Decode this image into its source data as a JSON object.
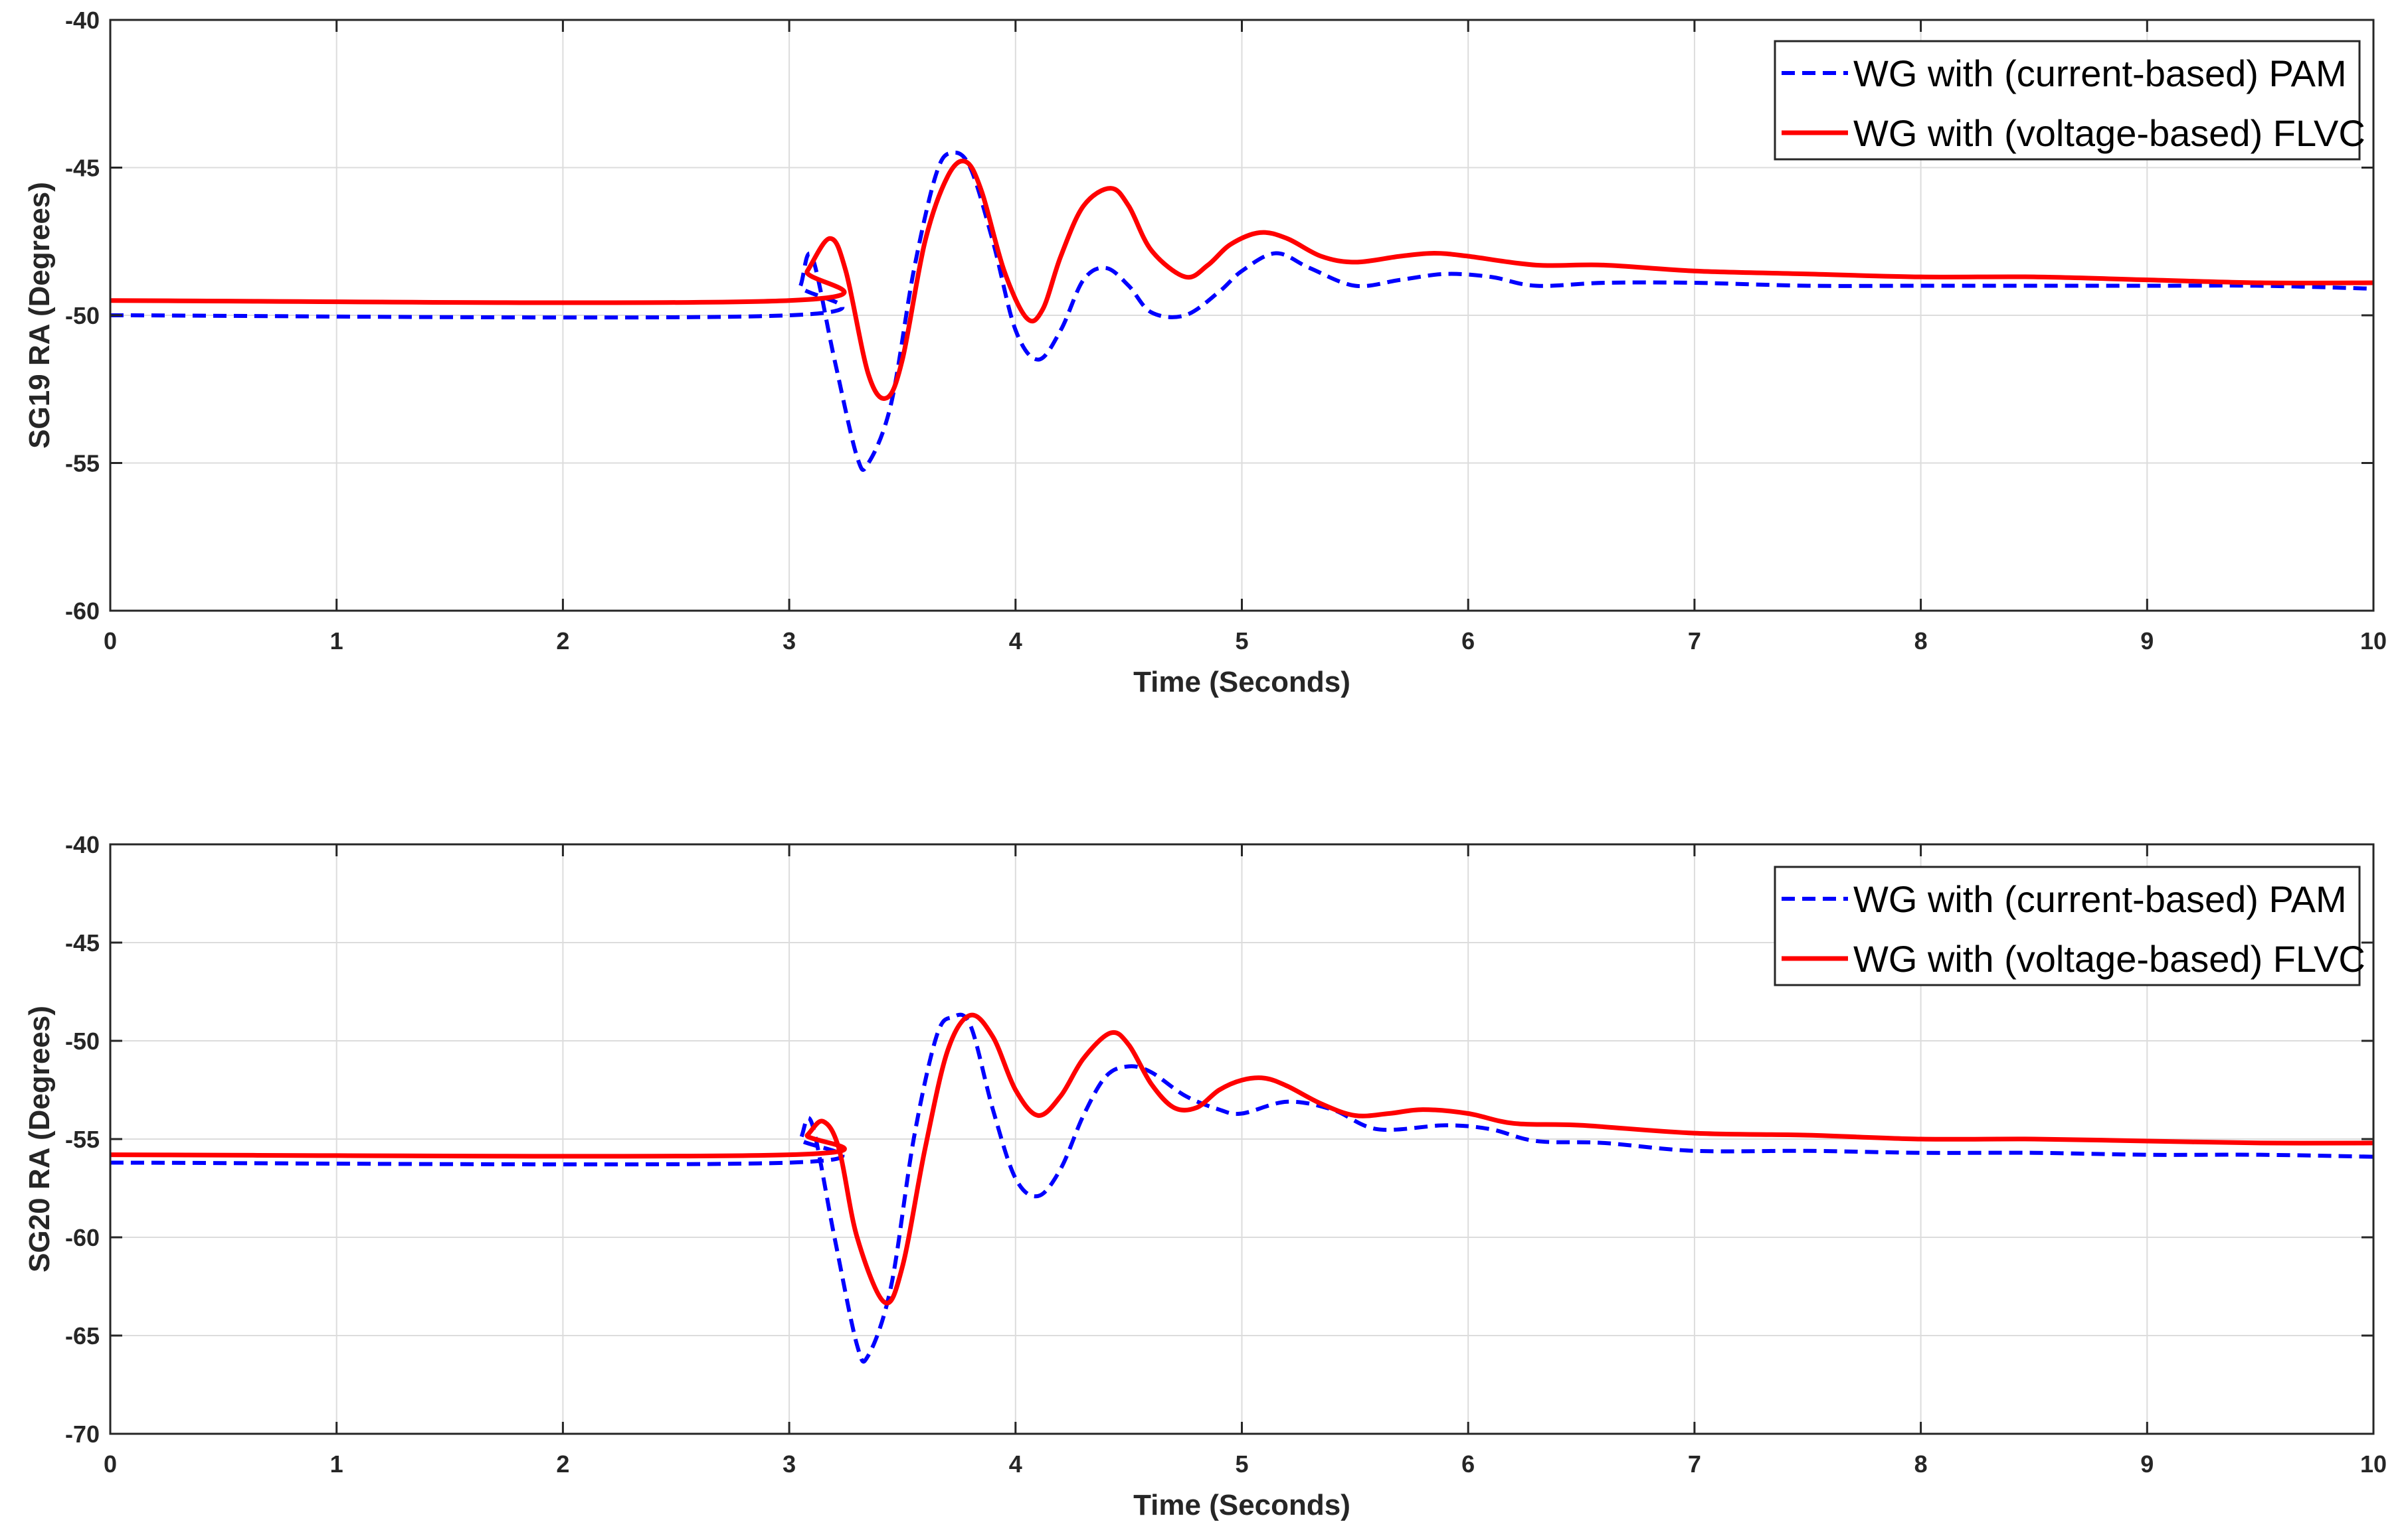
{
  "chart_data": [
    {
      "type": "line",
      "xlabel": "Time (Seconds)",
      "ylabel": "SG19 RA (Degrees)",
      "xlim": [
        0,
        10
      ],
      "ylim": [
        -60,
        -40
      ],
      "xticks": [
        0,
        1,
        2,
        3,
        4,
        5,
        6,
        7,
        8,
        9,
        10
      ],
      "yticks": [
        -60,
        -55,
        -50,
        -45,
        -40
      ],
      "grid": true,
      "legend_position": "top-right",
      "series": [
        {
          "name": "WG with (current-based) PAM",
          "color": "#0000ff",
          "style": "dashed",
          "x": [
            0,
            3.0,
            3.05,
            3.1,
            3.2,
            3.3,
            3.35,
            3.45,
            3.55,
            3.65,
            3.72,
            3.8,
            3.9,
            4.0,
            4.1,
            4.2,
            4.3,
            4.4,
            4.5,
            4.6,
            4.75,
            4.9,
            5.0,
            5.15,
            5.3,
            5.5,
            5.7,
            5.9,
            6.1,
            6.3,
            6.6,
            7.0,
            7.5,
            8.0,
            8.5,
            9.0,
            9.5,
            10.0
          ],
          "y": [
            -50.0,
            -50.0,
            -49.0,
            -48.0,
            -51.5,
            -54.8,
            -55.0,
            -53.0,
            -48.5,
            -45.2,
            -44.5,
            -45.0,
            -47.5,
            -50.5,
            -51.5,
            -50.5,
            -48.8,
            -48.4,
            -49.0,
            -49.9,
            -50.0,
            -49.2,
            -48.5,
            -47.9,
            -48.4,
            -49.0,
            -48.8,
            -48.6,
            -48.7,
            -49.0,
            -48.9,
            -48.9,
            -49.0,
            -49.0,
            -49.0,
            -49.0,
            -49.0,
            -49.1
          ]
        },
        {
          "name": "WG with (voltage-based) FLVC",
          "color": "#ff0000",
          "style": "solid",
          "x": [
            0,
            3.0,
            3.08,
            3.18,
            3.25,
            3.35,
            3.43,
            3.5,
            3.6,
            3.7,
            3.78,
            3.85,
            3.95,
            4.05,
            4.12,
            4.2,
            4.3,
            4.42,
            4.5,
            4.6,
            4.75,
            4.85,
            4.95,
            5.08,
            5.2,
            5.35,
            5.5,
            5.7,
            5.85,
            6.0,
            6.3,
            6.6,
            7.0,
            7.5,
            8.0,
            8.5,
            9.0,
            9.5,
            10.0
          ],
          "y": [
            -49.5,
            -49.5,
            -48.5,
            -47.4,
            -48.5,
            -52.0,
            -52.8,
            -51.5,
            -47.5,
            -45.3,
            -44.8,
            -45.8,
            -48.5,
            -50.1,
            -49.8,
            -48.0,
            -46.3,
            -45.7,
            -46.3,
            -47.8,
            -48.7,
            -48.3,
            -47.6,
            -47.2,
            -47.4,
            -48.0,
            -48.2,
            -48.0,
            -47.9,
            -48.0,
            -48.3,
            -48.3,
            -48.5,
            -48.6,
            -48.7,
            -48.7,
            -48.8,
            -48.9,
            -48.9
          ]
        }
      ]
    },
    {
      "type": "line",
      "xlabel": "Time (Seconds)",
      "ylabel": "SG20 RA (Degrees)",
      "xlim": [
        0,
        10
      ],
      "ylim": [
        -70,
        -40
      ],
      "xticks": [
        0,
        1,
        2,
        3,
        4,
        5,
        6,
        7,
        8,
        9,
        10
      ],
      "yticks": [
        -70,
        -65,
        -60,
        -55,
        -50,
        -45,
        -40
      ],
      "grid": true,
      "legend_position": "top-right",
      "series": [
        {
          "name": "WG with (current-based) PAM",
          "color": "#0000ff",
          "style": "dashed",
          "x": [
            0,
            3.0,
            3.05,
            3.1,
            3.2,
            3.3,
            3.35,
            3.45,
            3.55,
            3.65,
            3.72,
            3.8,
            3.9,
            4.0,
            4.1,
            4.2,
            4.3,
            4.4,
            4.5,
            4.6,
            4.75,
            4.9,
            5.0,
            5.2,
            5.4,
            5.6,
            5.9,
            6.1,
            6.3,
            6.6,
            7.0,
            7.5,
            8.0,
            8.5,
            9.0,
            9.5,
            10.0
          ],
          "y": [
            -56.2,
            -56.2,
            -55.0,
            -54.2,
            -60.0,
            -65.5,
            -66.0,
            -62.5,
            -55.0,
            -49.8,
            -48.8,
            -49.2,
            -53.5,
            -57.0,
            -57.9,
            -56.5,
            -53.8,
            -51.8,
            -51.3,
            -51.6,
            -52.8,
            -53.5,
            -53.7,
            -53.1,
            -53.5,
            -54.5,
            -54.3,
            -54.5,
            -55.1,
            -55.2,
            -55.6,
            -55.6,
            -55.7,
            -55.7,
            -55.8,
            -55.8,
            -55.9
          ]
        },
        {
          "name": "WG with (voltage-based) FLVC",
          "color": "#ff0000",
          "style": "solid",
          "x": [
            0,
            3.0,
            3.08,
            3.15,
            3.22,
            3.3,
            3.42,
            3.5,
            3.6,
            3.7,
            3.8,
            3.9,
            4.0,
            4.1,
            4.2,
            4.3,
            4.42,
            4.5,
            4.6,
            4.7,
            4.8,
            4.9,
            5.0,
            5.1,
            5.2,
            5.35,
            5.5,
            5.65,
            5.8,
            6.0,
            6.2,
            6.5,
            7.0,
            7.5,
            8.0,
            8.5,
            9.0,
            9.5,
            10.0
          ],
          "y": [
            -55.8,
            -55.8,
            -54.8,
            -54.1,
            -55.5,
            -60.0,
            -63.3,
            -61.5,
            -55.5,
            -50.5,
            -48.7,
            -49.8,
            -52.5,
            -53.8,
            -52.8,
            -50.9,
            -49.6,
            -50.2,
            -52.2,
            -53.4,
            -53.4,
            -52.5,
            -52.0,
            -51.9,
            -52.3,
            -53.2,
            -53.8,
            -53.7,
            -53.5,
            -53.7,
            -54.2,
            -54.3,
            -54.7,
            -54.8,
            -55.0,
            -55.0,
            -55.1,
            -55.2,
            -55.2
          ]
        }
      ]
    }
  ]
}
